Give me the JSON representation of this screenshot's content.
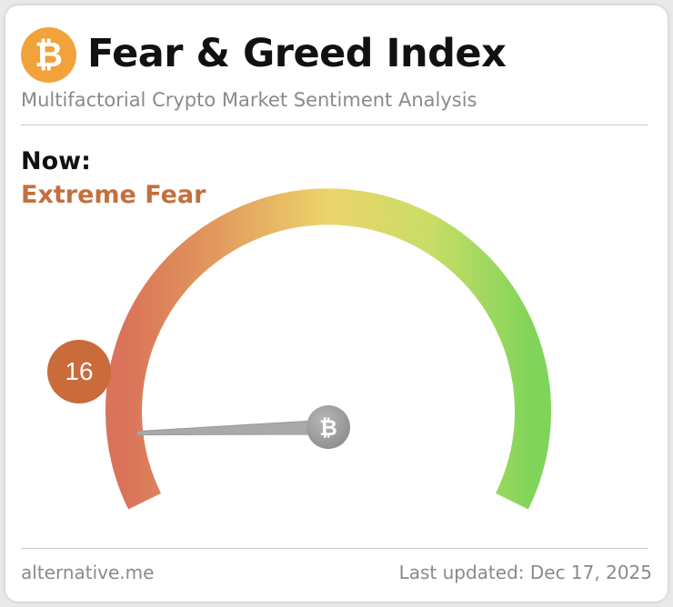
{
  "header": {
    "logo_icon": "bitcoin-icon",
    "logo_glyph": "₿",
    "title": "Fear & Greed Index",
    "subtitle": "Multifactorial Crypto Market Sentiment Analysis"
  },
  "current": {
    "label": "Now:",
    "classification": "Extreme Fear",
    "value": "16",
    "value_numeric": 16,
    "scale_min": 0,
    "scale_max": 100
  },
  "footer": {
    "source": "alternative.me",
    "last_updated": "Last updated: Dec 17, 2025"
  },
  "colors": {
    "accent_fear": "#c3703e",
    "badge": "#c96b3a",
    "logo": "#f2a23a",
    "gauge_start": "#d9735a",
    "gauge_mid": "#ecd46a",
    "gauge_end": "#7fd45a",
    "needle": "#a9a9a9"
  }
}
